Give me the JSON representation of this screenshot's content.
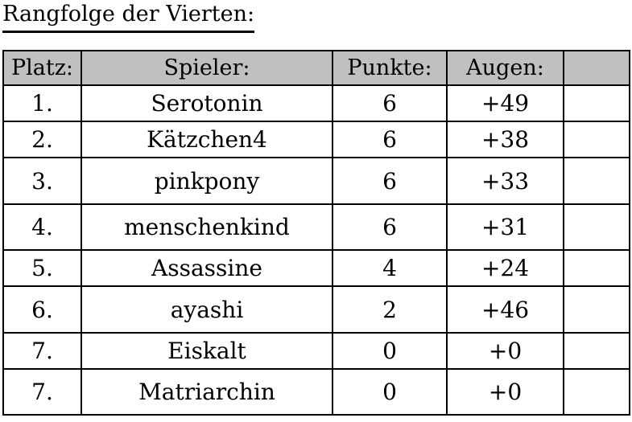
{
  "title": "Rangfolge der Vierten:",
  "table": {
    "headers": [
      "Platz:",
      "Spieler:",
      "Punkte:",
      "Augen:",
      ""
    ],
    "rows": [
      {
        "platz": "1.",
        "spieler": "Serotonin",
        "punkte": "6",
        "augen": "+49"
      },
      {
        "platz": "2.",
        "spieler": "Kätzchen4",
        "punkte": "6",
        "augen": "+38"
      },
      {
        "platz": "3.",
        "spieler": "pinkpony",
        "punkte": "6",
        "augen": "+33"
      },
      {
        "platz": "4.",
        "spieler": "menschenkind",
        "punkte": "6",
        "augen": "+31"
      },
      {
        "platz": "5.",
        "spieler": "Assassine",
        "punkte": "4",
        "augen": "+24"
      },
      {
        "platz": "6.",
        "spieler": "ayashi",
        "punkte": "2",
        "augen": "+46"
      },
      {
        "platz": "7.",
        "spieler": "Eiskalt",
        "punkte": "0",
        "augen": "+0"
      },
      {
        "platz": "7.",
        "spieler": "Matriarchin",
        "punkte": "0",
        "augen": "+0"
      }
    ]
  },
  "colors": {
    "header_background": "#c0c0c0",
    "border": "#000000",
    "background": "#ffffff"
  }
}
